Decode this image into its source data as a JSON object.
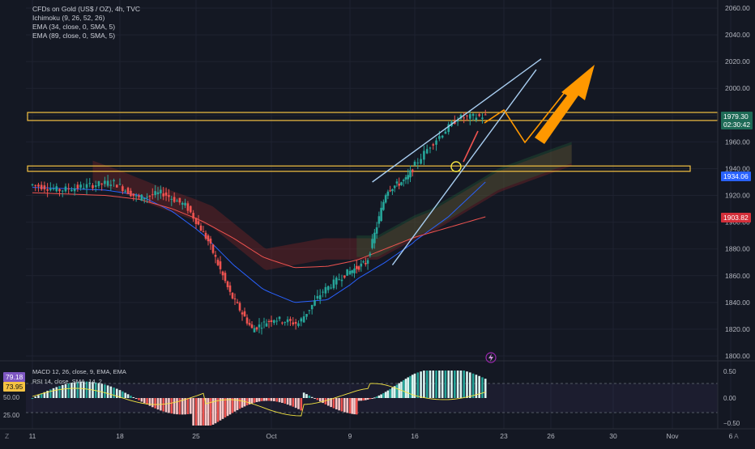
{
  "legend": {
    "symbol": "CFDs on Gold (US$ / OZ), 4h, TVC",
    "ind1": "Ichimoku (9, 26, 52, 26)",
    "ind2": "EMA (34, close, 0, SMA, 5)",
    "ind3": "EMA (89, close, 0, SMA, 5)"
  },
  "price_tags": {
    "last": "1979.30",
    "countdown": "02:30:42",
    "ema34": "1934.06",
    "ema89": "1903.82"
  },
  "osc": {
    "label1": "MACD 12, 26, close, 9, EMA, EMA",
    "label2": "RSI 14, close, SMA, 14, 2",
    "tag_purple": "79.18",
    "tag_yellow": "73.95",
    "left_50": "50.00",
    "left_25": "25.00",
    "right_050": "0.50",
    "right_000": "0.00",
    "right_m050": "−0.50"
  },
  "corners": {
    "bl": "Z",
    "br": "A"
  },
  "colors": {
    "bg": "#141823",
    "up": "#26a69a",
    "down": "#ef5350",
    "ema34": "#2962ff",
    "ema89": "#ef5350",
    "zone": "#f5c242",
    "channel": "#a8cdf0",
    "arrow": "#ff9800"
  },
  "chart_data": {
    "type": "candlestick",
    "y_axis": {
      "min": 1800,
      "max": 2060,
      "ticks": [
        "2060.00",
        "2040.00",
        "2020.00",
        "2000.00",
        "1980.00",
        "1960.00",
        "1940.00",
        "1920.00",
        "1900.00",
        "1880.00",
        "1860.00",
        "1840.00",
        "1820.00",
        "1800.00"
      ]
    },
    "x_ticks": [
      "11",
      "18",
      "25",
      "Oct",
      "9",
      "16",
      "23",
      "26",
      "30",
      "Nov",
      "6"
    ],
    "x_tick_index": [
      0,
      29,
      57,
      88,
      117,
      146,
      175,
      189,
      207,
      222,
      240
    ],
    "ohlc_samples": [
      [
        1926,
        1930,
        1922,
        1928
      ],
      [
        1928,
        1931,
        1921,
        1924
      ],
      [
        1924,
        1929,
        1919,
        1927
      ],
      [
        1927,
        1946,
        1926,
        1930
      ],
      [
        1930,
        1932,
        1916,
        1918
      ],
      [
        1918,
        1925,
        1910,
        1922
      ],
      [
        1922,
        1926,
        1908,
        1912
      ],
      [
        1912,
        1915,
        1880,
        1885
      ],
      [
        1885,
        1889,
        1840,
        1846
      ],
      [
        1846,
        1850,
        1816,
        1820
      ],
      [
        1820,
        1834,
        1812,
        1828
      ],
      [
        1828,
        1832,
        1814,
        1824
      ],
      [
        1824,
        1852,
        1822,
        1848
      ],
      [
        1848,
        1866,
        1842,
        1862
      ],
      [
        1862,
        1874,
        1856,
        1870
      ],
      [
        1870,
        1928,
        1866,
        1924
      ],
      [
        1924,
        1934,
        1916,
        1932
      ],
      [
        1932,
        1962,
        1928,
        1958
      ],
      [
        1958,
        1980,
        1952,
        1978
      ],
      [
        1978,
        1982,
        1970,
        1979.3
      ]
    ],
    "ema34_samples": [
      1926,
      1925,
      1924,
      1920,
      1908,
      1890,
      1868,
      1850,
      1840,
      1842,
      1858,
      1870,
      1884,
      1904,
      1930
    ],
    "ema89_samples": [
      1922,
      1921,
      1920,
      1917,
      1910,
      1900,
      1888,
      1874,
      1866,
      1867,
      1872,
      1880,
      1888,
      1896,
      1904
    ],
    "zones": [
      [
        1976,
        1982
      ],
      [
        1938,
        1942
      ]
    ],
    "projection": [
      1982,
      1960,
      2020
    ],
    "channel": {
      "upper": [
        1930,
        2022
      ],
      "lower": [
        1868,
        2014
      ]
    },
    "cloud": [
      1938,
      1920,
      1904,
      1872,
      1880,
      1880,
      1900,
      1930,
      1950
    ]
  }
}
